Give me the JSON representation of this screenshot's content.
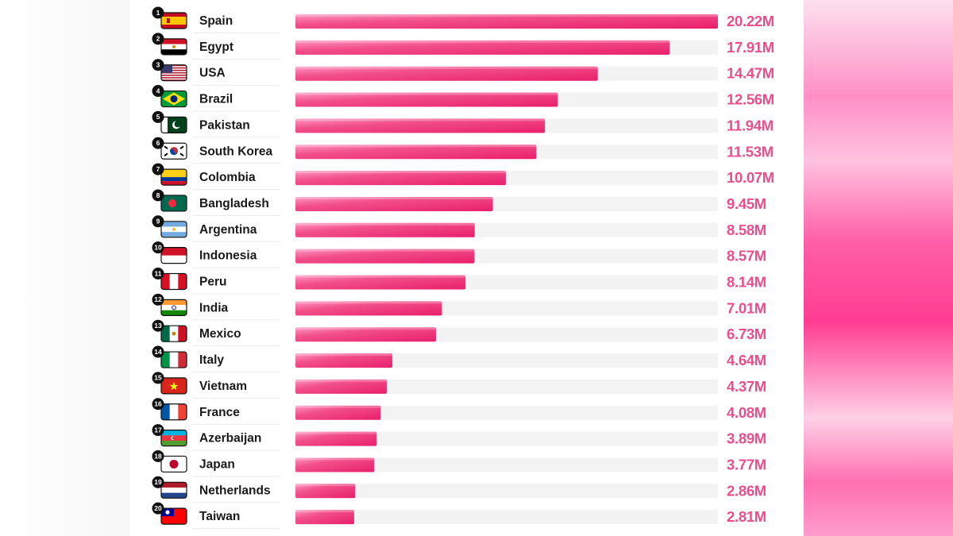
{
  "colors": {
    "bar": "#f0467f",
    "bar_highlight": "#ff9ac4",
    "track": "#f3f3f3",
    "value_text": "#ec4e8c",
    "label_text": "#1a1a1a",
    "rank_badge": "#111111"
  },
  "chart_data": {
    "type": "bar",
    "orientation": "horizontal",
    "title": "",
    "xlabel": "",
    "ylabel": "",
    "xlim": [
      0,
      20.22
    ],
    "grid": false,
    "categories": [
      "Spain",
      "Egypt",
      "USA",
      "Brazil",
      "Pakistan",
      "South Korea",
      "Colombia",
      "Bangladesh",
      "Argentina",
      "Indonesia",
      "Peru",
      "India",
      "Mexico",
      "Italy",
      "Vietnam",
      "France",
      "Azerbaijan",
      "Japan",
      "Netherlands",
      "Taiwan"
    ],
    "ranks": [
      "1",
      "2",
      "3",
      "4",
      "5",
      "6",
      "7",
      "8",
      "9",
      "10",
      "11",
      "12",
      "13",
      "14",
      "15",
      "16",
      "17",
      "18",
      "19",
      "20"
    ],
    "flag_icons": [
      "spain-flag-icon",
      "egypt-flag-icon",
      "usa-flag-icon",
      "brazil-flag-icon",
      "pakistan-flag-icon",
      "south-korea-flag-icon",
      "colombia-flag-icon",
      "bangladesh-flag-icon",
      "argentina-flag-icon",
      "indonesia-flag-icon",
      "peru-flag-icon",
      "india-flag-icon",
      "mexico-flag-icon",
      "italy-flag-icon",
      "vietnam-flag-icon",
      "france-flag-icon",
      "azerbaijan-flag-icon",
      "japan-flag-icon",
      "netherlands-flag-icon",
      "taiwan-flag-icon"
    ],
    "values": [
      20.22,
      17.91,
      14.47,
      12.56,
      11.94,
      11.53,
      10.07,
      9.45,
      8.58,
      8.57,
      8.14,
      7.01,
      6.73,
      4.64,
      4.37,
      4.08,
      3.89,
      3.77,
      2.86,
      2.81
    ],
    "value_labels": [
      "20.22M",
      "17.91M",
      "14.47M",
      "12.56M",
      "11.94M",
      "11.53M",
      "10.07M",
      "9.45M",
      "8.58M",
      "8.57M",
      "8.14M",
      "7.01M",
      "6.73M",
      "4.64M",
      "4.37M",
      "4.08M",
      "3.89M",
      "3.77M",
      "2.86M",
      "2.81M"
    ]
  }
}
